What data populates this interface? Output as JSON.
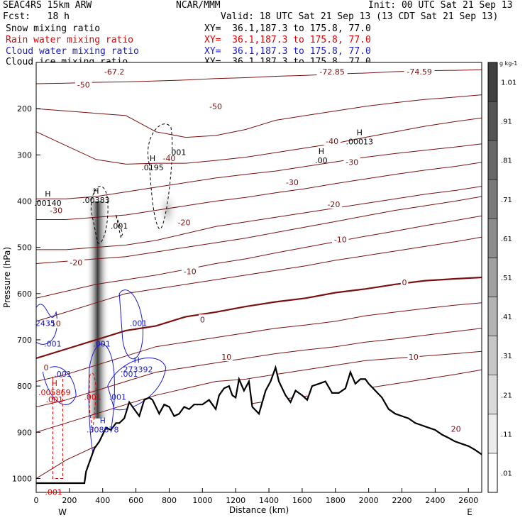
{
  "header": {
    "title": "SEAC4RS 15km ARW",
    "center": "NCAR/MMM",
    "init": "Init: 00 UTC Sat 21 Sep 13",
    "fcst": "Fcst:   18 h",
    "valid": "Valid: 18 UTC Sat 21 Sep 13 (13 CDT Sat 21 Sep 13)",
    "fields": [
      {
        "name": "Snow mixing ratio",
        "xy": "XY=  36.1,187.3 to 175.8, 77.0",
        "color": "#000000"
      },
      {
        "name": "Rain water mixing ratio",
        "xy": "XY=  36.1,187.3 to 175.8, 77.0",
        "color": "#e00000"
      },
      {
        "name": "Cloud water mixing ratio",
        "xy": "XY=  36.1,187.3 to 175.8, 77.0",
        "color": "#1a1ad0"
      },
      {
        "name": "Cloud ice mixing ratio",
        "xy": "XY=  36.1,187.3 to 175.8, 77.0",
        "color": "#000000"
      }
    ]
  },
  "chart_data": {
    "type": "cross-section",
    "xlabel": "Distance (km)",
    "ylabel": "Pressure (hPa)",
    "xlim": [
      0,
      2680
    ],
    "ylim": [
      1030,
      100
    ],
    "xticks": [
      0,
      200,
      400,
      600,
      800,
      1000,
      1200,
      1400,
      1600,
      1800,
      2000,
      2200,
      2400,
      2600
    ],
    "yticks": [
      200,
      300,
      400,
      500,
      600,
      700,
      800,
      900,
      1000
    ],
    "end_labels": {
      "left": "W",
      "right": "E"
    },
    "temperature_colour": "#7a1010",
    "temperature_labels": [
      {
        "text": "-50",
        "x": 285,
        "p": 148
      },
      {
        "text": "-50",
        "x": 1080,
        "p": 195
      },
      {
        "text": "-40",
        "x": 1780,
        "p": 270
      },
      {
        "text": "-40",
        "x": 800,
        "p": 307
      },
      {
        "text": "-30",
        "x": 1900,
        "p": 316
      },
      {
        "text": "-30",
        "x": 1540,
        "p": 359
      },
      {
        "text": "-30",
        "x": 120,
        "p": 420
      },
      {
        "text": "-20",
        "x": 1790,
        "p": 407
      },
      {
        "text": "-20",
        "x": 890,
        "p": 446
      },
      {
        "text": "-20",
        "x": 240,
        "p": 533
      },
      {
        "text": "-10",
        "x": 1830,
        "p": 483
      },
      {
        "text": "-10",
        "x": 925,
        "p": 552
      },
      {
        "text": "-10",
        "x": 110,
        "p": 665
      },
      {
        "text": "0",
        "x": 2215,
        "p": 576
      },
      {
        "text": "0",
        "x": 1000,
        "p": 656
      },
      {
        "text": "0",
        "x": 60,
        "p": 760
      },
      {
        "text": "10",
        "x": 2270,
        "p": 737
      },
      {
        "text": "10",
        "x": 1145,
        "p": 737
      },
      {
        "text": "20",
        "x": 2525,
        "p": 893
      },
      {
        "text": "-67.2",
        "x": 470,
        "p": 120
      },
      {
        "text": "-72.85",
        "x": 1780,
        "p": 120
      },
      {
        "text": "-74.59",
        "x": 2305,
        "p": 120
      }
    ],
    "extrema": [
      {
        "kind": "H",
        "value": ".00140",
        "x": 70,
        "p": 410,
        "color": "#000000"
      },
      {
        "kind": "H",
        "value": ".00383",
        "x": 360,
        "p": 404,
        "color": "#000000"
      },
      {
        "kind": "H",
        "value": ".0195",
        "x": 700,
        "p": 333,
        "color": "#000000"
      },
      {
        "kind": "H",
        "value": ".00",
        "x": 1715,
        "p": 318,
        "color": "#000000"
      },
      {
        "kind": "H",
        "value": ".00013",
        "x": 1945,
        "p": 277,
        "color": "#000000"
      },
      {
        "kind": "H",
        "value": ".273392",
        "x": 605,
        "p": 770,
        "color": "#1a1ad0"
      },
      {
        "kind": "H",
        "value": ".308878",
        "x": 400,
        "p": 900,
        "color": "#1a1ad0"
      },
      {
        "kind": "H",
        "value": ".005869",
        "x": 110,
        "p": 820,
        "color": "#e00000"
      }
    ],
    "contour_labels": [
      {
        "text": ".001",
        "x": 850,
        "p": 300,
        "color": "#000000"
      },
      {
        "text": ".001",
        "x": 500,
        "p": 460,
        "color": "#000000"
      },
      {
        "text": ".001",
        "x": 615,
        "p": 670,
        "color": "#1a1ad0"
      },
      {
        "text": ".001",
        "x": 395,
        "p": 715,
        "color": "#1a1ad0"
      },
      {
        "text": ".001",
        "x": 100,
        "p": 715,
        "color": "#1a1ad0"
      },
      {
        "text": "2435",
        "x": 55,
        "p": 670,
        "color": "#1a1ad0"
      },
      {
        "text": ".001",
        "x": 160,
        "p": 780,
        "color": "#1a1ad0"
      },
      {
        "text": ".001",
        "x": 560,
        "p": 780,
        "color": "#1a1ad0"
      },
      {
        "text": ".001",
        "x": 490,
        "p": 830,
        "color": "#1a1ad0"
      },
      {
        "text": ".001",
        "x": 340,
        "p": 830,
        "color": "#e00000"
      },
      {
        "text": ".001",
        "x": 110,
        "p": 835,
        "color": "#e00000"
      },
      {
        "text": ".001",
        "x": 105,
        "p": 1035,
        "color": "#e00000"
      }
    ],
    "terrain": {
      "x": [
        0,
        100,
        200,
        290,
        300,
        350,
        380,
        420,
        450,
        480,
        500,
        530,
        560,
        580,
        600,
        620,
        650,
        680,
        700,
        740,
        770,
        800,
        830,
        860,
        890,
        920,
        950,
        1000,
        1040,
        1080,
        1100,
        1130,
        1160,
        1180,
        1200,
        1220,
        1250,
        1280,
        1300,
        1340,
        1380,
        1410,
        1440,
        1460,
        1500,
        1530,
        1560,
        1600,
        1630,
        1660,
        1700,
        1740,
        1780,
        1820,
        1860,
        1890,
        1920,
        1950,
        1980,
        2000,
        2040,
        2080,
        2120,
        2160,
        2200,
        2240,
        2280,
        2320,
        2360,
        2400,
        2440,
        2480,
        2520,
        2560,
        2600,
        2640,
        2680
      ],
      "p": [
        1010,
        1010,
        1010,
        1010,
        985,
        935,
        920,
        890,
        895,
        880,
        880,
        870,
        835,
        845,
        855,
        865,
        830,
        825,
        830,
        860,
        840,
        845,
        865,
        860,
        845,
        850,
        840,
        840,
        830,
        850,
        820,
        805,
        800,
        820,
        825,
        785,
        810,
        790,
        845,
        860,
        810,
        790,
        760,
        790,
        820,
        835,
        810,
        820,
        830,
        800,
        795,
        790,
        815,
        815,
        805,
        770,
        795,
        785,
        785,
        795,
        810,
        825,
        850,
        860,
        865,
        870,
        880,
        885,
        890,
        895,
        905,
        912,
        920,
        925,
        930,
        938,
        948
      ]
    },
    "isotherms": [
      {
        "p": [
          146,
          145,
          143,
          142,
          140,
          138,
          135,
          133,
          130,
          128,
          125,
          123,
          120,
          118,
          117,
          116
        ]
      },
      {
        "p": [
          200,
          205,
          210,
          215,
          250,
          262,
          258,
          245,
          225,
          215,
          205,
          195,
          187,
          180,
          175,
          170
        ]
      },
      {
        "p": [
          250,
          280,
          310,
          320,
          318,
          318,
          312,
          305,
          295,
          285,
          275,
          262,
          250,
          238,
          228,
          220
        ]
      },
      {
        "p": [
          395,
          395,
          390,
          380,
          370,
          360,
          350,
          342,
          335,
          325,
          315,
          305,
          297,
          290,
          283,
          276
        ]
      },
      {
        "p": [
          440,
          440,
          435,
          430,
          420,
          410,
          400,
          392,
          382,
          373,
          362,
          352,
          342,
          333,
          325,
          316
        ]
      },
      {
        "p": [
          505,
          505,
          500,
          495,
          485,
          470,
          455,
          445,
          435,
          425,
          415,
          405,
          395,
          385,
          377,
          368
        ]
      },
      {
        "p": [
          535,
          530,
          525,
          520,
          510,
          500,
          490,
          480,
          468,
          456,
          444,
          432,
          420,
          410,
          400,
          390
        ]
      },
      {
        "p": [
          610,
          595,
          580,
          570,
          560,
          548,
          535,
          525,
          512,
          500,
          488,
          476,
          465,
          453,
          442,
          432
        ]
      },
      {
        "p": [
          660,
          640,
          620,
          600,
          590,
          580,
          570,
          560,
          550,
          540,
          528,
          518,
          508,
          498,
          488,
          478
        ]
      },
      {
        "p": [
          740,
          720,
          700,
          680,
          670,
          650,
          640,
          628,
          618,
          610,
          598,
          590,
          580,
          572,
          568,
          565
        ]
      },
      {
        "p": [
          790,
          775,
          755,
          735,
          715,
          705,
          695,
          685,
          675,
          668,
          660,
          648,
          640,
          632,
          625,
          620
        ]
      },
      {
        "p": [
          845,
          830,
          810,
          790,
          770,
          760,
          750,
          740,
          730,
          722,
          715,
          705,
          698,
          690,
          682,
          675
        ]
      },
      {
        "p": [
          900,
          880,
          860,
          840,
          820,
          805,
          790,
          785,
          775,
          765,
          755,
          745,
          740,
          735,
          730,
          725
        ]
      },
      {
        "p": [
          1000,
          960,
          930,
          900,
          870,
          860,
          850,
          840,
          830,
          822,
          815,
          805,
          795,
          785,
          775,
          765
        ]
      }
    ],
    "colorbar": {
      "unit": "g kg-1",
      "labels": [
        ".01",
        ".11",
        ".21",
        ".31",
        ".41",
        ".51",
        ".61",
        ".71",
        ".81",
        ".91",
        "1.01"
      ]
    }
  }
}
